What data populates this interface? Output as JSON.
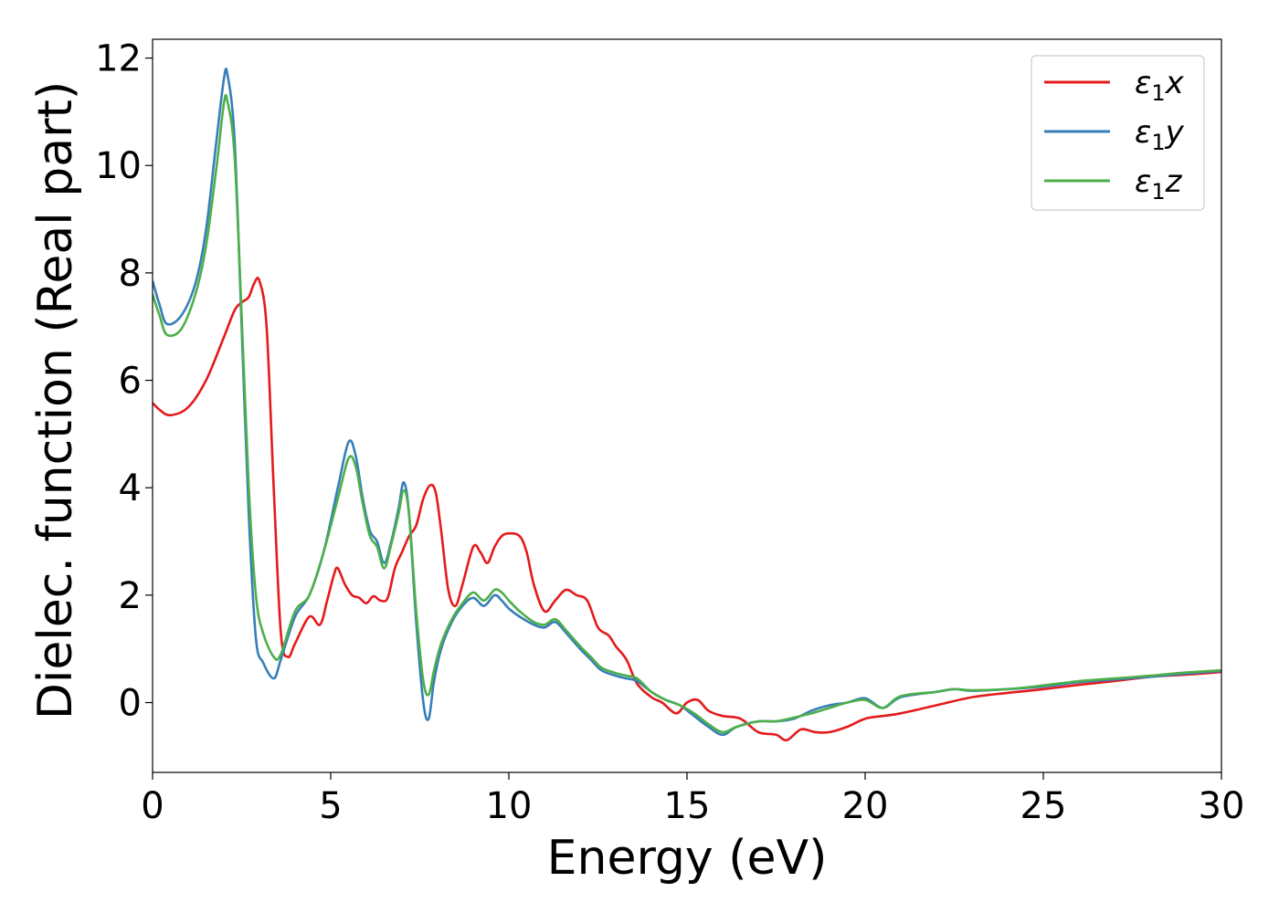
{
  "chart_data": {
    "type": "line",
    "title": "",
    "xlabel": "Energy (eV)",
    "ylabel": "Dielec. function (Real part)",
    "xlim": [
      0,
      30
    ],
    "ylim": [
      -1.3,
      12.35
    ],
    "xticks": [
      0,
      5,
      10,
      15,
      20,
      25,
      30
    ],
    "yticks": [
      0,
      2,
      4,
      6,
      8,
      10,
      12
    ],
    "grid": false,
    "legend_position": "top-right",
    "series": [
      {
        "name": "ε₁x",
        "legend_base": "ε",
        "legend_sub": "1",
        "legend_suffix": "x",
        "color": "#e41a1c",
        "x": [
          0,
          0.2,
          0.5,
          1.0,
          1.5,
          2.0,
          2.3,
          2.5,
          2.7,
          2.85,
          3.0,
          3.2,
          3.4,
          3.6,
          3.8,
          4.0,
          4.4,
          4.7,
          4.9,
          5.1,
          5.2,
          5.4,
          5.6,
          5.8,
          6.0,
          6.2,
          6.4,
          6.6,
          6.8,
          7.0,
          7.2,
          7.4,
          7.6,
          7.8,
          7.95,
          8.1,
          8.3,
          8.5,
          8.7,
          9.0,
          9.2,
          9.4,
          9.6,
          9.8,
          10.0,
          10.3,
          10.5,
          10.7,
          11.0,
          11.3,
          11.6,
          11.9,
          12.2,
          12.5,
          12.8,
          13.0,
          13.3,
          13.6,
          14.0,
          14.3,
          14.7,
          15.0,
          15.3,
          15.6,
          16.0,
          16.5,
          17.0,
          17.5,
          17.8,
          18.2,
          18.6,
          19.0,
          19.5,
          20.0,
          20.5,
          21.0,
          22.0,
          23.0,
          24.0,
          25.0,
          26.0,
          27.0,
          28.0,
          29.0,
          30.0
        ],
        "values": [
          5.58,
          5.45,
          5.35,
          5.5,
          6.0,
          6.8,
          7.3,
          7.45,
          7.55,
          7.8,
          7.85,
          7.0,
          4.0,
          1.3,
          0.85,
          1.1,
          1.6,
          1.45,
          1.9,
          2.4,
          2.5,
          2.2,
          2.0,
          1.95,
          1.85,
          1.98,
          1.9,
          1.95,
          2.5,
          2.8,
          3.1,
          3.3,
          3.8,
          4.05,
          3.9,
          3.2,
          2.1,
          1.8,
          2.2,
          2.9,
          2.8,
          2.6,
          2.9,
          3.1,
          3.15,
          3.1,
          2.8,
          2.2,
          1.7,
          1.9,
          2.1,
          2.0,
          1.9,
          1.4,
          1.25,
          1.05,
          0.8,
          0.35,
          0.1,
          0.0,
          -0.2,
          0.0,
          0.05,
          -0.15,
          -0.25,
          -0.3,
          -0.55,
          -0.6,
          -0.7,
          -0.5,
          -0.55,
          -0.55,
          -0.45,
          -0.3,
          -0.25,
          -0.2,
          -0.05,
          0.1,
          0.18,
          0.25,
          0.33,
          0.4,
          0.48,
          0.52,
          0.57
        ]
      },
      {
        "name": "ε₁y",
        "legend_base": "ε",
        "legend_sub": "1",
        "legend_suffix": "y",
        "color": "#377eb8",
        "x": [
          0,
          0.2,
          0.4,
          0.8,
          1.2,
          1.5,
          1.8,
          2.0,
          2.1,
          2.3,
          2.5,
          2.7,
          2.9,
          3.1,
          3.4,
          3.6,
          4.0,
          4.4,
          4.8,
          5.2,
          5.5,
          5.7,
          5.9,
          6.1,
          6.3,
          6.5,
          6.7,
          6.9,
          7.05,
          7.2,
          7.4,
          7.6,
          7.75,
          7.9,
          8.1,
          8.4,
          8.7,
          9.0,
          9.3,
          9.6,
          9.8,
          10.0,
          10.3,
          10.7,
          11.0,
          11.3,
          11.6,
          12.0,
          12.3,
          12.6,
          13.0,
          13.3,
          13.6,
          14.0,
          14.4,
          14.8,
          15.2,
          15.6,
          16.0,
          16.4,
          17.0,
          17.5,
          18.0,
          18.5,
          19.0,
          19.5,
          20.0,
          20.5,
          21.0,
          22.0,
          22.5,
          23.0,
          24.0,
          25.0,
          26.0,
          27.0,
          28.0,
          29.0,
          30.0
        ],
        "values": [
          7.85,
          7.4,
          7.05,
          7.2,
          7.8,
          8.8,
          10.5,
          11.6,
          11.7,
          10.5,
          7.0,
          3.5,
          1.2,
          0.75,
          0.45,
          0.8,
          1.6,
          2.0,
          2.8,
          4.0,
          4.85,
          4.6,
          3.8,
          3.2,
          3.0,
          2.6,
          3.0,
          3.6,
          4.1,
          3.5,
          1.5,
          0.0,
          -0.3,
          0.4,
          1.0,
          1.5,
          1.8,
          1.95,
          1.8,
          2.0,
          1.9,
          1.75,
          1.6,
          1.45,
          1.4,
          1.5,
          1.3,
          1.0,
          0.8,
          0.6,
          0.5,
          0.45,
          0.4,
          0.2,
          0.05,
          -0.05,
          -0.25,
          -0.45,
          -0.6,
          -0.45,
          -0.35,
          -0.35,
          -0.3,
          -0.15,
          -0.05,
          0.0,
          0.08,
          -0.1,
          0.1,
          0.2,
          0.25,
          0.22,
          0.25,
          0.3,
          0.38,
          0.43,
          0.48,
          0.54,
          0.59
        ]
      },
      {
        "name": "ε₁z",
        "legend_base": "ε",
        "legend_sub": "1",
        "legend_suffix": "z",
        "color": "#4daf4a",
        "x": [
          0,
          0.2,
          0.4,
          0.8,
          1.2,
          1.5,
          1.8,
          2.0,
          2.1,
          2.3,
          2.5,
          2.7,
          2.9,
          3.1,
          3.4,
          3.6,
          4.0,
          4.4,
          4.8,
          5.2,
          5.5,
          5.7,
          5.9,
          6.1,
          6.3,
          6.5,
          6.7,
          6.9,
          7.05,
          7.2,
          7.4,
          7.6,
          7.75,
          7.9,
          8.1,
          8.4,
          8.7,
          9.0,
          9.3,
          9.6,
          9.8,
          10.0,
          10.3,
          10.7,
          11.0,
          11.3,
          11.6,
          12.0,
          12.3,
          12.6,
          13.0,
          13.3,
          13.6,
          14.0,
          14.4,
          14.8,
          15.2,
          15.6,
          16.0,
          16.4,
          17.0,
          17.5,
          18.0,
          18.5,
          19.0,
          19.5,
          20.0,
          20.5,
          21.0,
          22.0,
          22.5,
          23.0,
          24.0,
          25.0,
          26.0,
          27.0,
          28.0,
          29.0,
          30.0
        ],
        "values": [
          7.6,
          7.2,
          6.85,
          6.95,
          7.6,
          8.5,
          10.0,
          11.15,
          11.2,
          10.2,
          7.2,
          4.0,
          2.0,
          1.3,
          0.85,
          0.9,
          1.7,
          2.0,
          2.8,
          3.8,
          4.55,
          4.4,
          3.7,
          3.1,
          2.9,
          2.5,
          2.95,
          3.5,
          3.95,
          3.5,
          1.7,
          0.4,
          0.15,
          0.6,
          1.1,
          1.55,
          1.85,
          2.05,
          1.9,
          2.1,
          2.05,
          1.9,
          1.7,
          1.5,
          1.45,
          1.55,
          1.35,
          1.05,
          0.85,
          0.65,
          0.55,
          0.5,
          0.45,
          0.2,
          0.05,
          -0.05,
          -0.2,
          -0.4,
          -0.55,
          -0.45,
          -0.35,
          -0.35,
          -0.28,
          -0.2,
          -0.1,
          0.0,
          0.05,
          -0.1,
          0.12,
          0.2,
          0.25,
          0.23,
          0.25,
          0.32,
          0.4,
          0.45,
          0.5,
          0.56,
          0.6
        ]
      }
    ]
  }
}
